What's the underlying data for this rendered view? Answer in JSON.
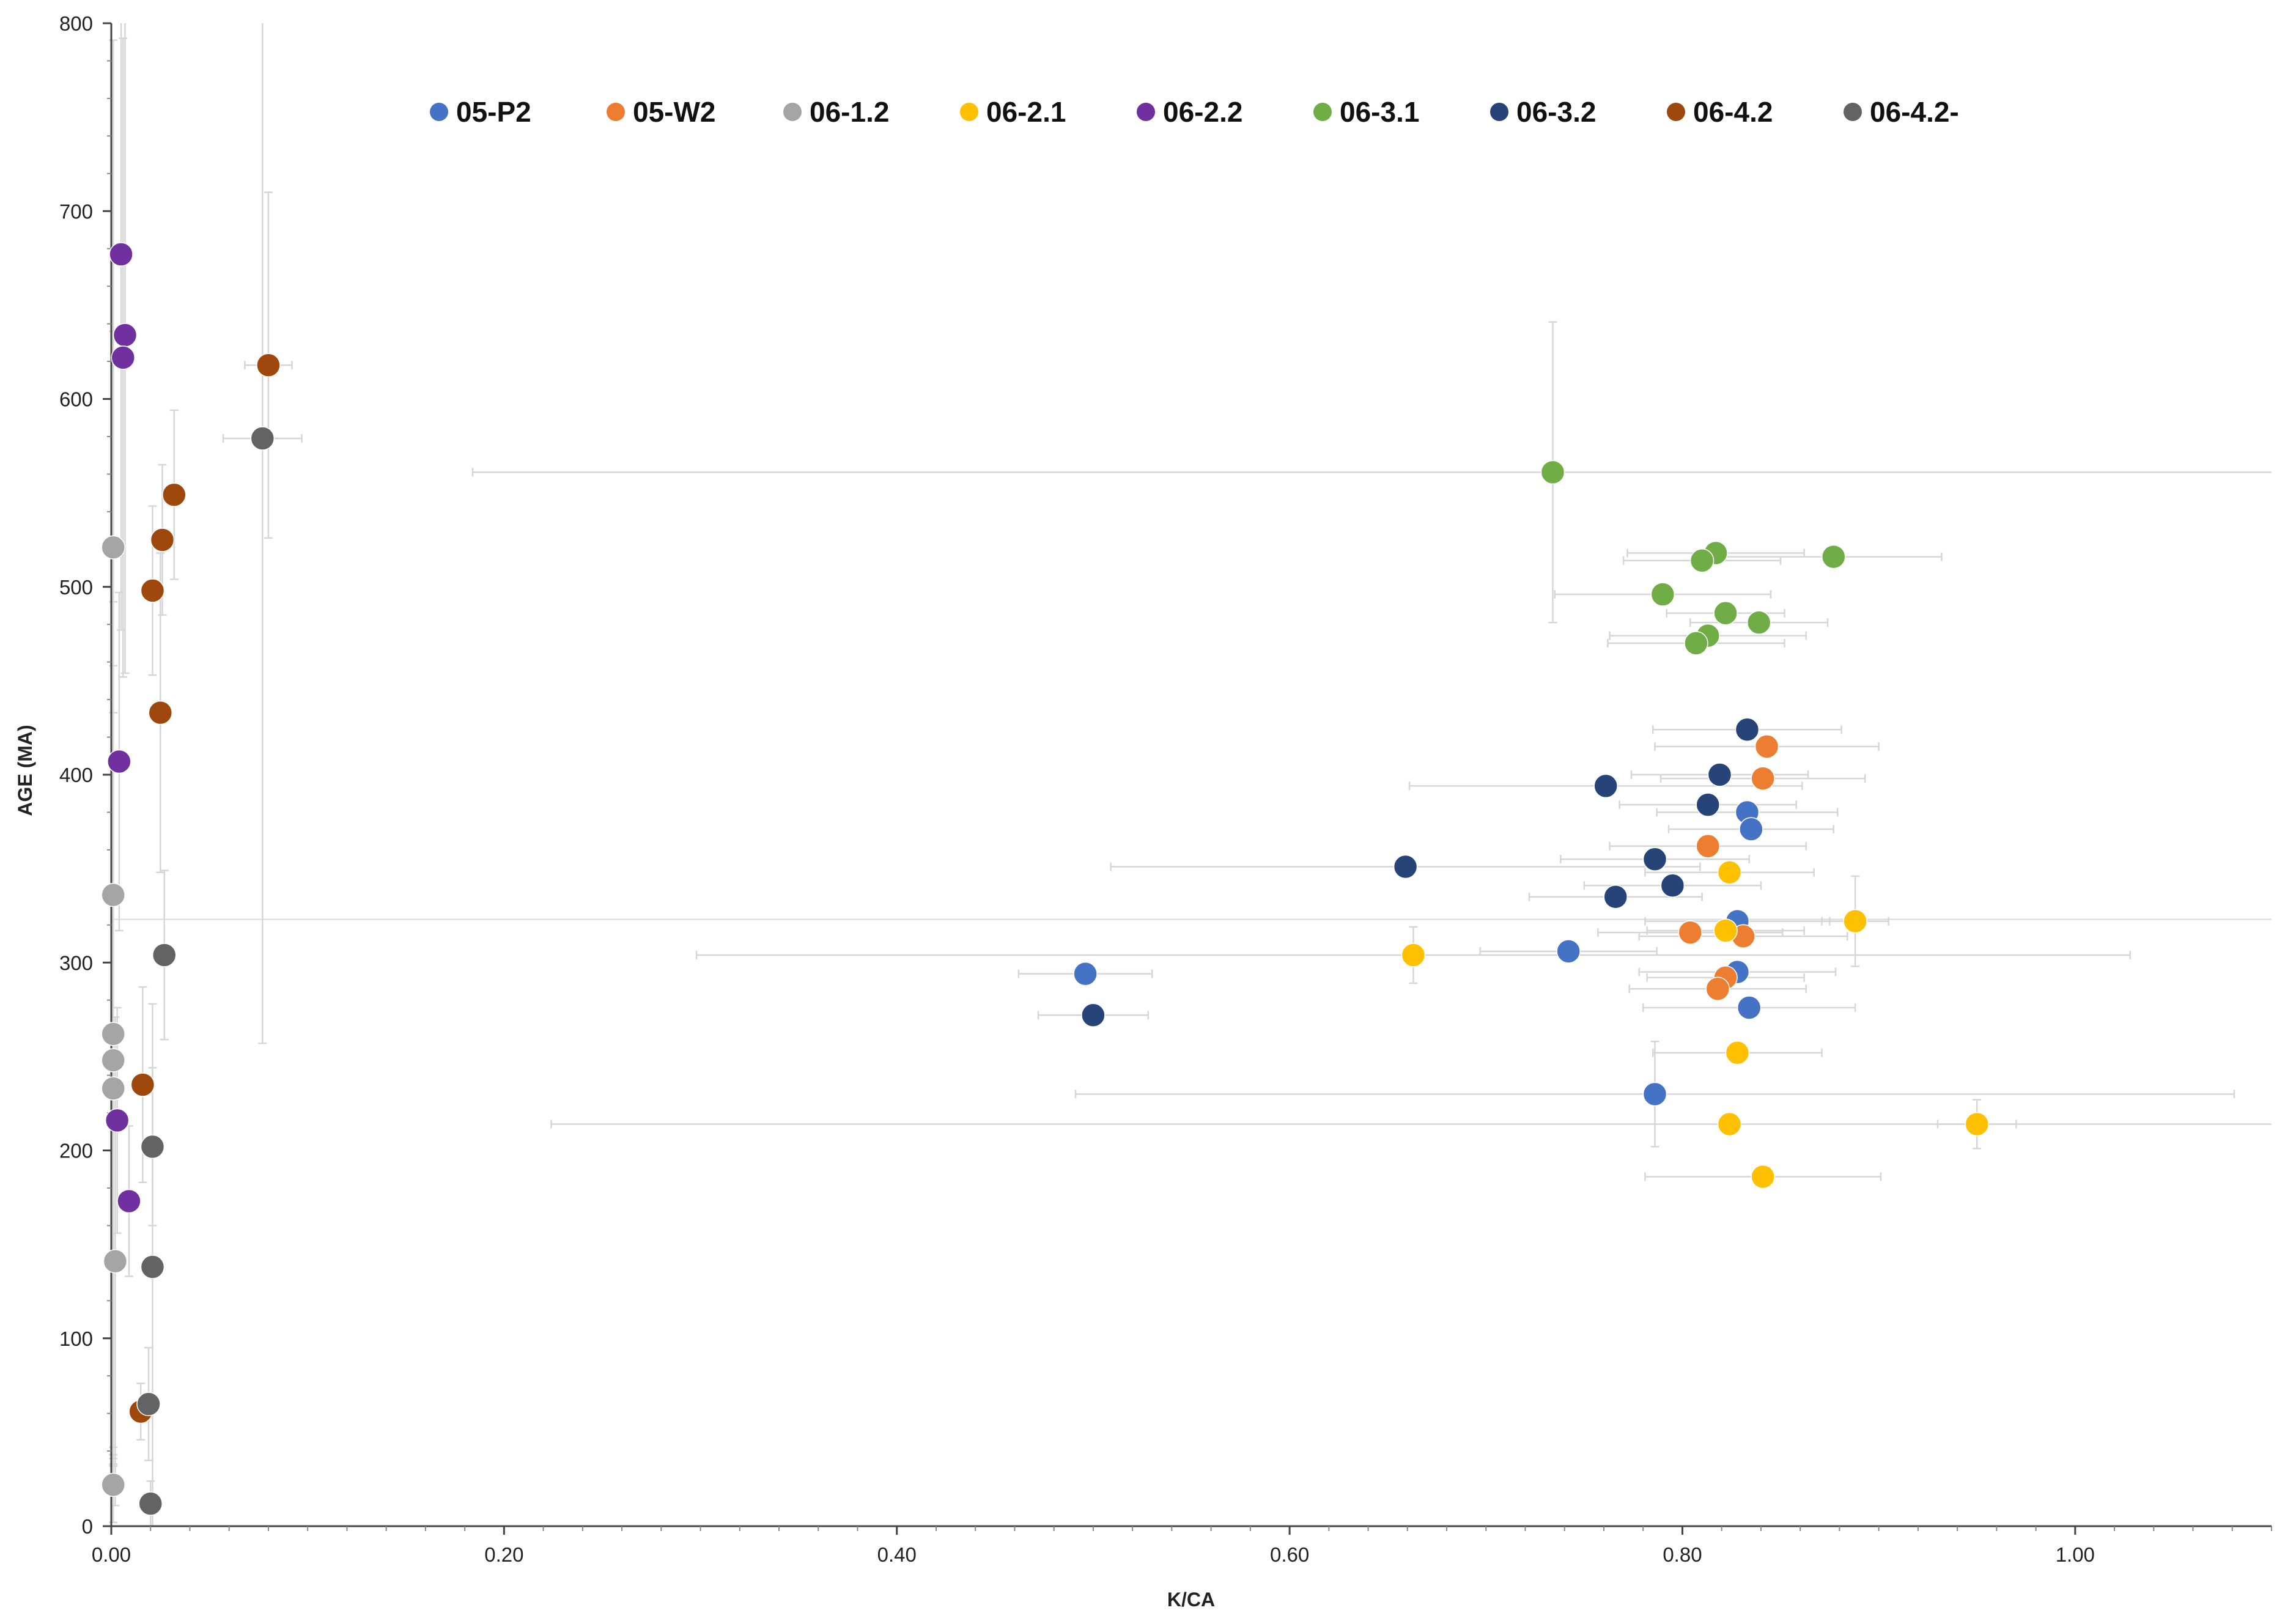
{
  "chart_data": {
    "type": "scatter",
    "title": "",
    "xlabel": "K/CA",
    "ylabel": "AGE (MA)",
    "xlim": [
      0,
      1.1
    ],
    "ylim": [
      0,
      800
    ],
    "x_ticks": [
      0,
      0.2,
      0.4,
      0.6,
      0.8,
      1.0
    ],
    "x_tick_labels": [
      "0.00",
      "0.20",
      "0.40",
      "0.60",
      "0.80",
      "1.00"
    ],
    "y_ticks": [
      0,
      100,
      200,
      300,
      400,
      500,
      600,
      700,
      800
    ],
    "y_tick_labels": [
      "0",
      "100",
      "200",
      "300",
      "400",
      "500",
      "600",
      "700",
      "800"
    ],
    "grid": false,
    "legend_position": "top",
    "reference_lines": [
      {
        "orientation": "horizontal",
        "y": 323,
        "color": "#d9d9d9"
      }
    ],
    "series": [
      {
        "name": "05-P2",
        "color": "#4472c4",
        "points": [
          {
            "x": 0.496,
            "y": 294,
            "xerr": 0.034,
            "yerr": 0
          },
          {
            "x": 0.742,
            "y": 306,
            "xerr": 0.045,
            "yerr": 0
          },
          {
            "x": 0.786,
            "y": 230,
            "xerr": 0.295,
            "yerr": 28
          },
          {
            "x": 0.828,
            "y": 295,
            "xerr": 0.05,
            "yerr": 0
          },
          {
            "x": 0.834,
            "y": 276,
            "xerr": 0.054,
            "yerr": 0
          },
          {
            "x": 0.828,
            "y": 322,
            "xerr": 0.047,
            "yerr": 0
          },
          {
            "x": 0.833,
            "y": 380,
            "xerr": 0.046,
            "yerr": 0
          },
          {
            "x": 0.835,
            "y": 371,
            "xerr": 0.042,
            "yerr": 0
          }
        ]
      },
      {
        "name": "05-W2",
        "color": "#ed7d31",
        "points": [
          {
            "x": 0.813,
            "y": 362,
            "xerr": 0.05,
            "yerr": 0
          },
          {
            "x": 0.804,
            "y": 316,
            "xerr": 0.047,
            "yerr": 0
          },
          {
            "x": 0.831,
            "y": 314,
            "xerr": 0.053,
            "yerr": 0
          },
          {
            "x": 0.822,
            "y": 292,
            "xerr": 0.04,
            "yerr": 0
          },
          {
            "x": 0.818,
            "y": 286,
            "xerr": 0.045,
            "yerr": 0
          },
          {
            "x": 0.843,
            "y": 415,
            "xerr": 0.057,
            "yerr": 0
          },
          {
            "x": 0.841,
            "y": 398,
            "xerr": 0.052,
            "yerr": 0
          }
        ]
      },
      {
        "name": "06-1.2",
        "color": "#a5a5a5",
        "points": [
          {
            "x": 0.001,
            "y": 521,
            "xerr": 0.003,
            "yerr": 270
          },
          {
            "x": 0.001,
            "y": 336,
            "xerr": 0.003,
            "yerr": 300
          },
          {
            "x": 0.001,
            "y": 262,
            "xerr": 0.003,
            "yerr": 230
          },
          {
            "x": 0.001,
            "y": 248,
            "xerr": 0.003,
            "yerr": 210
          },
          {
            "x": 0.001,
            "y": 233,
            "xerr": 0.003,
            "yerr": 200
          },
          {
            "x": 0.002,
            "y": 141,
            "xerr": 0.003,
            "yerr": 130
          },
          {
            "x": 0.001,
            "y": 22,
            "xerr": 0.003,
            "yerr": 20
          }
        ]
      },
      {
        "name": "06-2.1",
        "color": "#ffc000",
        "points": [
          {
            "x": 0.663,
            "y": 304,
            "xerr": 0.365,
            "yerr": 15
          },
          {
            "x": 0.824,
            "y": 348,
            "xerr": 0.043,
            "yerr": 0
          },
          {
            "x": 0.822,
            "y": 317,
            "xerr": 0.04,
            "yerr": 0
          },
          {
            "x": 0.888,
            "y": 322,
            "xerr": 0.017,
            "yerr": 24
          },
          {
            "x": 0.828,
            "y": 252,
            "xerr": 0.043,
            "yerr": 0
          },
          {
            "x": 0.824,
            "y": 214,
            "xerr": 0.6,
            "yerr": 0
          },
          {
            "x": 0.95,
            "y": 214,
            "xerr": 0.02,
            "yerr": 13
          },
          {
            "x": 0.841,
            "y": 186,
            "xerr": 0.06,
            "yerr": 0
          }
        ]
      },
      {
        "name": "06-2.2",
        "color": "#7030a0",
        "points": [
          {
            "x": 0.005,
            "y": 677,
            "xerr": 0.003,
            "yerr": 200
          },
          {
            "x": 0.007,
            "y": 634,
            "xerr": 0.003,
            "yerr": 180
          },
          {
            "x": 0.006,
            "y": 622,
            "xerr": 0.003,
            "yerr": 170
          },
          {
            "x": 0.004,
            "y": 407,
            "xerr": 0.003,
            "yerr": 90
          },
          {
            "x": 0.003,
            "y": 216,
            "xerr": 0.003,
            "yerr": 60
          },
          {
            "x": 0.009,
            "y": 173,
            "xerr": 0.003,
            "yerr": 40
          }
        ]
      },
      {
        "name": "06-3.1",
        "color": "#70ad47",
        "points": [
          {
            "x": 0.734,
            "y": 561,
            "xerr": 0.55,
            "yerr": 80
          },
          {
            "x": 0.817,
            "y": 518,
            "xerr": 0.045,
            "yerr": 0
          },
          {
            "x": 0.81,
            "y": 514,
            "xerr": 0.04,
            "yerr": 0
          },
          {
            "x": 0.877,
            "y": 516,
            "xerr": 0.055,
            "yerr": 0
          },
          {
            "x": 0.79,
            "y": 496,
            "xerr": 0.055,
            "yerr": 0
          },
          {
            "x": 0.822,
            "y": 486,
            "xerr": 0.03,
            "yerr": 0
          },
          {
            "x": 0.839,
            "y": 481,
            "xerr": 0.035,
            "yerr": 0
          },
          {
            "x": 0.813,
            "y": 474,
            "xerr": 0.05,
            "yerr": 0
          },
          {
            "x": 0.807,
            "y": 470,
            "xerr": 0.045,
            "yerr": 0
          }
        ]
      },
      {
        "name": "06-3.2",
        "color": "#264478",
        "points": [
          {
            "x": 0.833,
            "y": 424,
            "xerr": 0.048,
            "yerr": 0
          },
          {
            "x": 0.819,
            "y": 400,
            "xerr": 0.045,
            "yerr": 0
          },
          {
            "x": 0.761,
            "y": 394,
            "xerr": 0.1,
            "yerr": 0
          },
          {
            "x": 0.813,
            "y": 384,
            "xerr": 0.045,
            "yerr": 0
          },
          {
            "x": 0.786,
            "y": 355,
            "xerr": 0.048,
            "yerr": 0
          },
          {
            "x": 0.659,
            "y": 351,
            "xerr": 0.15,
            "yerr": 0
          },
          {
            "x": 0.795,
            "y": 341,
            "xerr": 0.045,
            "yerr": 0
          },
          {
            "x": 0.766,
            "y": 335,
            "xerr": 0.044,
            "yerr": 0
          },
          {
            "x": 0.5,
            "y": 272,
            "xerr": 0.028,
            "yerr": 0
          }
        ]
      },
      {
        "name": "06-4.2",
        "color": "#9e480e",
        "points": [
          {
            "x": 0.08,
            "y": 618,
            "xerr": 0.012,
            "yerr": 92
          },
          {
            "x": 0.032,
            "y": 549,
            "xerr": 0.003,
            "yerr": 45
          },
          {
            "x": 0.026,
            "y": 525,
            "xerr": 0.003,
            "yerr": 40
          },
          {
            "x": 0.021,
            "y": 498,
            "xerr": 0.003,
            "yerr": 45
          },
          {
            "x": 0.025,
            "y": 433,
            "xerr": 0.003,
            "yerr": 85
          },
          {
            "x": 0.016,
            "y": 235,
            "xerr": 0.003,
            "yerr": 52
          },
          {
            "x": 0.015,
            "y": 61,
            "xerr": 0.003,
            "yerr": 15
          }
        ]
      },
      {
        "name": "06-4.2-",
        "color": "#636363",
        "points": [
          {
            "x": 0.077,
            "y": 579,
            "xerr": 0.02,
            "yerr": 322
          },
          {
            "x": 0.027,
            "y": 304,
            "xerr": 0.003,
            "yerr": 45
          },
          {
            "x": 0.021,
            "y": 202,
            "xerr": 0.003,
            "yerr": 42
          },
          {
            "x": 0.021,
            "y": 138,
            "xerr": 0.003,
            "yerr": 140
          },
          {
            "x": 0.019,
            "y": 65,
            "xerr": 0.003,
            "yerr": 30
          },
          {
            "x": 0.02,
            "y": 12,
            "xerr": 0.003,
            "yerr": 12
          }
        ]
      }
    ]
  }
}
